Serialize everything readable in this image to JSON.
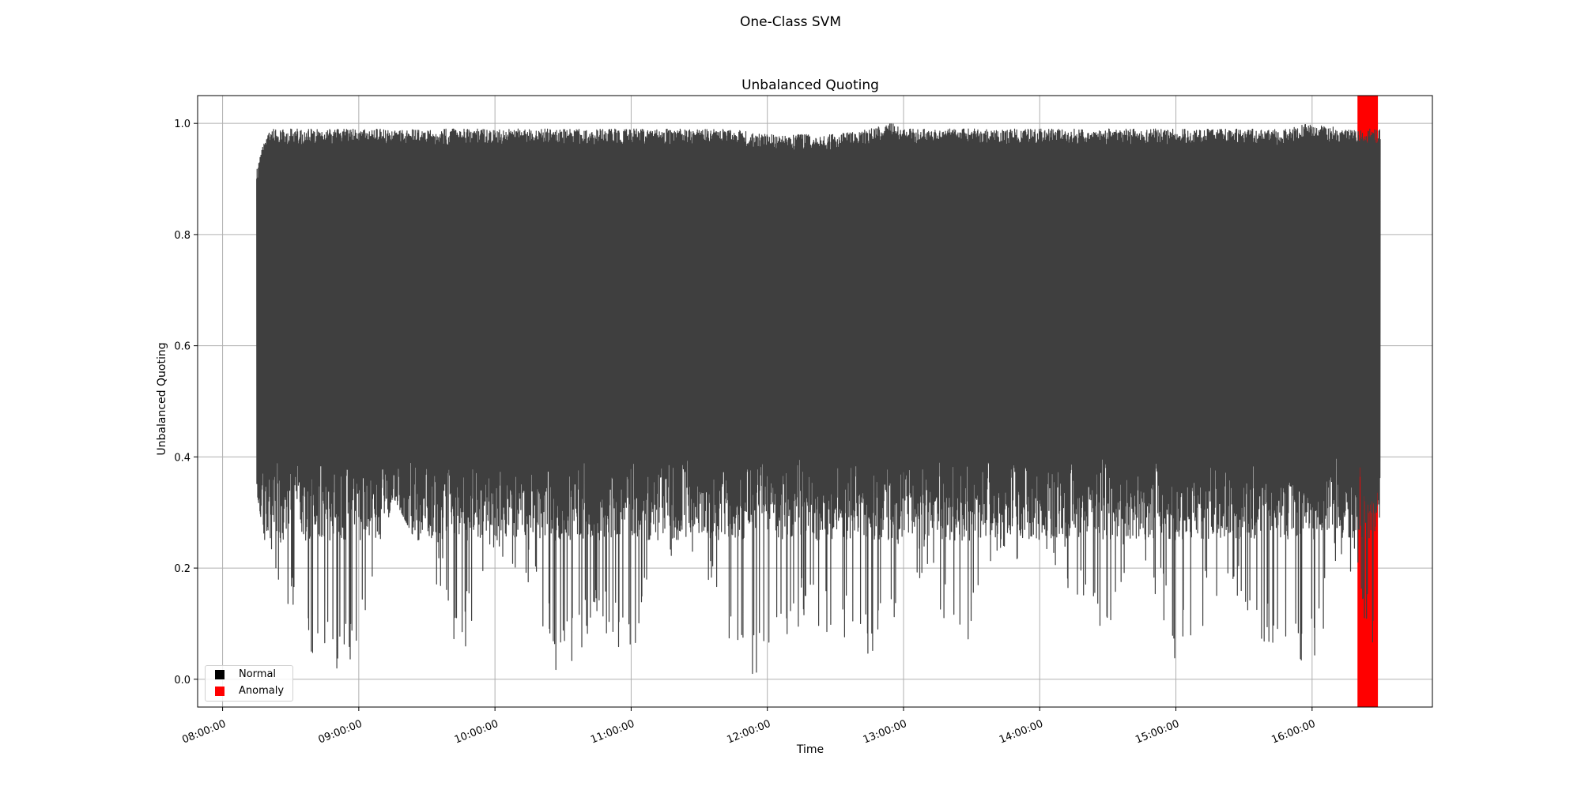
{
  "figure": {
    "suptitle": "One-Class SVM"
  },
  "chart_data": {
    "type": "line",
    "title": "Unbalanced Quoting",
    "xlabel": "Time",
    "ylabel": "Unbalanced Quoting",
    "xlim": [
      "07:49:00",
      "16:53:00"
    ],
    "ylim": [
      -0.05,
      1.05
    ],
    "x_ticks": [
      "08:00:00",
      "09:00:00",
      "10:00:00",
      "11:00:00",
      "12:00:00",
      "13:00:00",
      "14:00:00",
      "15:00:00",
      "16:00:00"
    ],
    "y_ticks": [
      "0.0",
      "0.2",
      "0.4",
      "0.6",
      "0.8",
      "1.0"
    ],
    "grid": true,
    "legend_position": "lower-left",
    "series": [
      {
        "name": "Normal",
        "color": "#3f3f3f",
        "x_range": [
          "08:15:00",
          "16:30:00"
        ],
        "y_range": [
          0.0,
          1.0
        ],
        "envelope": [
          {
            "t": "08:15:00",
            "low": 0.34,
            "high": 0.92
          },
          {
            "t": "08:20:00",
            "low": 0.21,
            "high": 0.99
          },
          {
            "t": "08:30:00",
            "low": 0.11,
            "high": 0.99
          },
          {
            "t": "08:45:00",
            "low": 0.01,
            "high": 0.99
          },
          {
            "t": "09:00:00",
            "low": 0.02,
            "high": 0.99
          },
          {
            "t": "09:15:00",
            "low": 0.33,
            "high": 0.99
          },
          {
            "t": "09:30:00",
            "low": 0.21,
            "high": 0.99
          },
          {
            "t": "09:45:00",
            "low": 0.03,
            "high": 0.99
          },
          {
            "t": "10:00:00",
            "low": 0.23,
            "high": 0.99
          },
          {
            "t": "10:15:00",
            "low": 0.17,
            "high": 0.99
          },
          {
            "t": "10:27:00",
            "low": 0.0,
            "high": 0.99
          },
          {
            "t": "10:45:00",
            "low": 0.07,
            "high": 0.99
          },
          {
            "t": "11:00:00",
            "low": 0.03,
            "high": 0.99
          },
          {
            "t": "11:15:00",
            "low": 0.21,
            "high": 0.99
          },
          {
            "t": "11:30:00",
            "low": 0.22,
            "high": 0.99
          },
          {
            "t": "11:45:00",
            "low": 0.02,
            "high": 0.99
          },
          {
            "t": "12:00:00",
            "low": 0.0,
            "high": 0.98
          },
          {
            "t": "12:15:00",
            "low": 0.09,
            "high": 0.98
          },
          {
            "t": "12:30:00",
            "low": 0.08,
            "high": 0.98
          },
          {
            "t": "12:45:00",
            "low": 0.02,
            "high": 0.99
          },
          {
            "t": "12:55:00",
            "low": 0.08,
            "high": 1.0
          },
          {
            "t": "13:00:00",
            "low": 0.22,
            "high": 0.99
          },
          {
            "t": "13:15:00",
            "low": 0.11,
            "high": 0.99
          },
          {
            "t": "13:25:00",
            "low": 0.0,
            "high": 0.99
          },
          {
            "t": "13:45:00",
            "low": 0.21,
            "high": 0.99
          },
          {
            "t": "14:00:00",
            "low": 0.22,
            "high": 0.99
          },
          {
            "t": "14:15:00",
            "low": 0.15,
            "high": 0.99
          },
          {
            "t": "14:30:00",
            "low": 0.07,
            "high": 0.99
          },
          {
            "t": "14:45:00",
            "low": 0.24,
            "high": 0.99
          },
          {
            "t": "15:00:00",
            "low": 0.01,
            "high": 0.99
          },
          {
            "t": "15:15:00",
            "low": 0.11,
            "high": 0.99
          },
          {
            "t": "15:30:00",
            "low": 0.13,
            "high": 0.99
          },
          {
            "t": "15:45:00",
            "low": 0.0,
            "high": 0.99
          },
          {
            "t": "16:00:00",
            "low": 0.02,
            "high": 1.0
          },
          {
            "t": "16:15:00",
            "low": 0.22,
            "high": 0.99
          },
          {
            "t": "16:30:00",
            "low": 0.01,
            "high": 0.99
          }
        ]
      },
      {
        "name": "Anomaly",
        "color": "#ff0000",
        "type": "span",
        "x_range": [
          "16:20:00",
          "16:29:00"
        ]
      }
    ]
  }
}
